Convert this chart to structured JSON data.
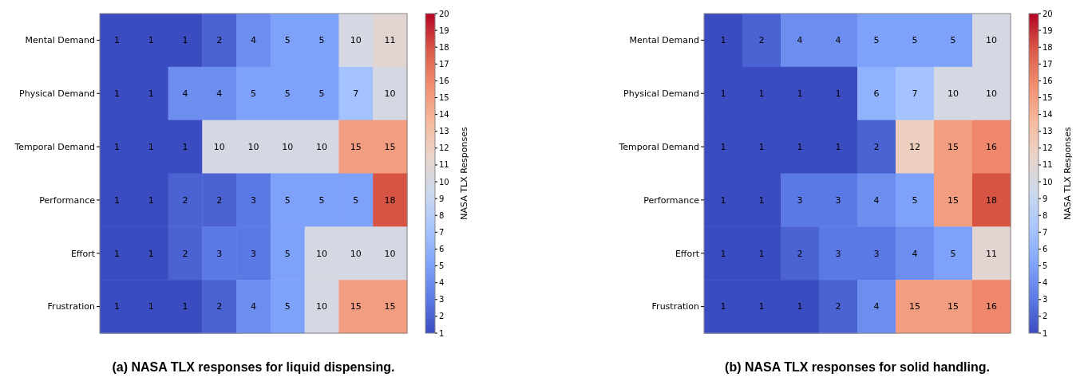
{
  "chart_data": [
    {
      "type": "heatmap",
      "title": "(a) NASA TLX responses for liquid dispensing.",
      "clabel": "NASA TLX Responses",
      "categories": [
        null,
        null,
        null,
        null,
        null,
        null,
        null,
        null,
        null
      ],
      "y_categories": [
        "Mental Demand",
        "Physical Demand",
        "Temporal Demand",
        "Performance",
        "Effort",
        "Frustration"
      ],
      "cells": [
        [
          1,
          1,
          1,
          2,
          4,
          5,
          5,
          10,
          11
        ],
        [
          1,
          1,
          4,
          4,
          5,
          5,
          5,
          7,
          10
        ],
        [
          1,
          1,
          1,
          10,
          10,
          10,
          10,
          15,
          15
        ],
        [
          1,
          1,
          2,
          2,
          3,
          5,
          5,
          5,
          18
        ],
        [
          1,
          1,
          2,
          3,
          3,
          5,
          10,
          10,
          10
        ],
        [
          1,
          1,
          1,
          2,
          4,
          5,
          10,
          15,
          15
        ]
      ],
      "clim": [
        1,
        20
      ],
      "cticks": [
        1,
        2,
        3,
        4,
        5,
        6,
        7,
        8,
        9,
        10,
        11,
        12,
        13,
        14,
        15,
        16,
        17,
        18,
        19,
        20
      ],
      "data_labels": true
    },
    {
      "type": "heatmap",
      "title": "(b) NASA TLX responses for solid handling.",
      "clabel": "NASA TLX Responses",
      "categories": [
        null,
        null,
        null,
        null,
        null,
        null,
        null,
        null
      ],
      "y_categories": [
        "Mental Demand",
        "Physical Demand",
        "Temporal Demand",
        "Performance",
        "Effort",
        "Frustration"
      ],
      "cells": [
        [
          1,
          2,
          4,
          4,
          5,
          5,
          5,
          10
        ],
        [
          1,
          1,
          1,
          1,
          6,
          7,
          10,
          10
        ],
        [
          1,
          1,
          1,
          1,
          2,
          12,
          15,
          16
        ],
        [
          1,
          1,
          3,
          3,
          4,
          5,
          15,
          18
        ],
        [
          1,
          1,
          2,
          3,
          3,
          4,
          5,
          11
        ],
        [
          1,
          1,
          1,
          2,
          4,
          15,
          15,
          16
        ]
      ],
      "clim": [
        1,
        20
      ],
      "cticks": [
        1,
        2,
        3,
        4,
        5,
        6,
        7,
        8,
        9,
        10,
        11,
        12,
        13,
        14,
        15,
        16,
        17,
        18,
        19,
        20
      ],
      "data_labels": true
    }
  ]
}
